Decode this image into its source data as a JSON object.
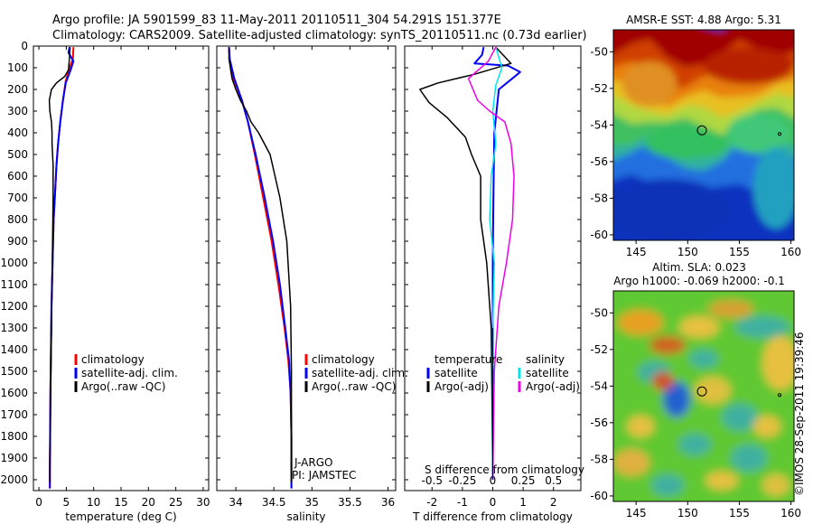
{
  "header": {
    "line1": "Argo profile: JA 5901599_83 11-May-2011 20110511_304 54.291S 151.377E",
    "line2": "Climatology: CARS2009. Satellite-adjusted climatology: synTS_20110511.nc (0.73d earlier)"
  },
  "colors": {
    "climatology": "#ff0000",
    "satellite": "#0000ff",
    "argo": "#000000",
    "sat_cyan": "#00e5ee",
    "argo_magenta": "#ee00ee"
  },
  "chart_data": [
    {
      "type": "line",
      "id": "temperature",
      "xlabel": "temperature (deg C)",
      "ylabel": "",
      "xlim": [
        -1,
        31
      ],
      "ylim": [
        2050,
        0
      ],
      "xticks": [
        0,
        5,
        10,
        15,
        20,
        25,
        30
      ],
      "yticks": [
        0,
        100,
        200,
        300,
        400,
        500,
        600,
        700,
        800,
        900,
        1000,
        1100,
        1200,
        1300,
        1400,
        1500,
        1600,
        1700,
        1800,
        1900,
        2000
      ],
      "legend": [
        "climatology",
        "satellite-adj. clim.",
        "Argo(..raw -QC)"
      ],
      "series": [
        {
          "name": "climatology",
          "color": "#ff0000",
          "x": [
            6.3,
            6.2,
            5.6,
            4.9,
            4.4,
            3.9,
            3.5,
            3.2,
            3.0,
            2.7,
            2.5,
            2.3,
            2.2,
            2.1,
            2.05,
            2.0,
            2.0
          ],
          "y": [
            5,
            60,
            100,
            160,
            250,
            350,
            450,
            550,
            650,
            800,
            1000,
            1200,
            1400,
            1600,
            1800,
            1950,
            2040
          ]
        },
        {
          "name": "satellite-adj. clim.",
          "color": "#0000ff",
          "x": [
            5.6,
            5.4,
            6.3,
            5.8,
            4.9,
            4.4,
            3.9,
            3.5,
            3.2,
            3.0,
            2.7,
            2.5,
            2.3,
            2.2,
            2.1,
            2.05,
            2.0,
            2.0
          ],
          "y": [
            5,
            30,
            70,
            110,
            170,
            250,
            350,
            450,
            550,
            650,
            800,
            1000,
            1200,
            1400,
            1600,
            1800,
            1950,
            2040
          ]
        },
        {
          "name": "Argo(..raw -QC)",
          "color": "#000000",
          "x": [
            5.7,
            5.6,
            5.4,
            4.7,
            3.2,
            2.3,
            1.9,
            2.0,
            2.3,
            2.4,
            2.4,
            2.6,
            2.6,
            2.5,
            2.4,
            2.3,
            2.2,
            2.1,
            2.0,
            2.0
          ],
          "y": [
            5,
            50,
            110,
            140,
            170,
            200,
            250,
            300,
            350,
            400,
            450,
            550,
            700,
            900,
            1100,
            1300,
            1500,
            1700,
            1900,
            2010
          ]
        }
      ]
    },
    {
      "type": "line",
      "id": "salinity",
      "xlabel": "salinity",
      "ylabel": "",
      "xlim": [
        33.75,
        36.1
      ],
      "ylim": [
        2050,
        0
      ],
      "xticks": [
        34,
        34.5,
        35,
        35.5,
        36
      ],
      "legend": [
        "climatology",
        "satellite-adj. clim.",
        "Argo(..raw -QC)"
      ],
      "annotations": [
        "J-ARGO",
        "PI: JAMSTEC"
      ],
      "series": [
        {
          "name": "climatology",
          "color": "#ff0000",
          "x": [
            33.91,
            33.92,
            33.97,
            34.08,
            34.16,
            34.25,
            34.36,
            34.47,
            34.56,
            34.64,
            34.69,
            34.72,
            34.73,
            34.73,
            34.73,
            34.73,
            34.73
          ],
          "y": [
            5,
            60,
            150,
            250,
            350,
            500,
            700,
            900,
            1100,
            1300,
            1450,
            1600,
            1800,
            1950,
            2000,
            2020,
            2040
          ]
        },
        {
          "name": "satellite-adj. clim.",
          "color": "#0000ff",
          "x": [
            33.91,
            33.92,
            33.98,
            34.08,
            34.16,
            34.26,
            34.38,
            34.49,
            34.58,
            34.65,
            34.7,
            34.72,
            34.73,
            34.73,
            34.73,
            34.73
          ],
          "y": [
            5,
            60,
            150,
            250,
            350,
            500,
            700,
            900,
            1100,
            1300,
            1450,
            1600,
            1800,
            1950,
            2000,
            2040
          ]
        },
        {
          "name": "Argo(..raw -QC)",
          "color": "#000000",
          "x": [
            33.91,
            33.91,
            33.95,
            34.0,
            34.06,
            34.14,
            34.2,
            34.3,
            34.45,
            34.58,
            34.67,
            34.72,
            34.73,
            34.73,
            34.73
          ],
          "y": [
            5,
            60,
            150,
            200,
            250,
            300,
            350,
            400,
            500,
            700,
            900,
            1200,
            1500,
            1800,
            2010
          ]
        }
      ]
    },
    {
      "type": "line",
      "id": "difference",
      "xlabel": "T difference from climatology",
      "xlabel_top": "S difference from climatology",
      "xlim": [
        -2.9,
        2.9
      ],
      "ylim": [
        2050,
        0
      ],
      "xticks": [
        -2,
        -1,
        0,
        1,
        2
      ],
      "xticks_s": [
        "-0.5",
        "-0.25",
        "0",
        "0.25",
        "0.5"
      ],
      "legend": [
        "temperature",
        "satellite",
        "Argo(-adj)",
        "salinity",
        "satellite",
        "Argo(-adj)"
      ],
      "series": [
        {
          "name": "temperature satellite",
          "color": "#0000ff",
          "x": [
            -0.3,
            -0.35,
            -0.6,
            0.5,
            0.9,
            0.2,
            0.05,
            0.02,
            0.0,
            0.0,
            0.0
          ],
          "y": [
            5,
            40,
            80,
            90,
            120,
            200,
            400,
            700,
            1000,
            1500,
            2000
          ]
        },
        {
          "name": "temperature Argo(-adj)",
          "color": "#000000",
          "x": [
            0.1,
            0.6,
            -0.6,
            -1.8,
            -2.4,
            -2.1,
            -1.5,
            -0.9,
            -0.7,
            -0.4,
            -0.4,
            -0.2,
            -0.05,
            0.0
          ],
          "y": [
            5,
            80,
            130,
            170,
            200,
            260,
            330,
            420,
            500,
            600,
            800,
            1000,
            1300,
            2000
          ]
        },
        {
          "name": "salinity satellite",
          "color": "#00e5ee",
          "x": [
            0.1,
            0.3,
            0.1,
            0.0,
            0.1,
            -0.05,
            -0.1,
            0.05,
            0.0,
            0.0,
            0.0
          ],
          "y": [
            5,
            100,
            180,
            300,
            450,
            600,
            800,
            1000,
            1300,
            1700,
            2000
          ]
        },
        {
          "name": "salinity Argo(-adj)",
          "color": "#ee00ee",
          "x": [
            0.1,
            -0.15,
            -0.8,
            -0.5,
            -0.1,
            0.4,
            0.6,
            0.7,
            0.65,
            0.45,
            0.2,
            0.05,
            0.0
          ],
          "y": [
            5,
            70,
            150,
            250,
            300,
            350,
            450,
            600,
            800,
            1000,
            1200,
            1500,
            2000
          ]
        }
      ]
    },
    {
      "type": "heatmap",
      "id": "sst_map",
      "title": "AMSR-E SST: 4.88 Argo: 5.31",
      "xticks": [
        145,
        150,
        155,
        160
      ],
      "yticks": [
        -50,
        -52,
        -54,
        -56,
        -58,
        -60
      ],
      "xlim": [
        142.8,
        160.3
      ],
      "ylim": [
        -60.3,
        -48.8
      ],
      "marker": [
        151.377,
        -54.291
      ]
    },
    {
      "type": "heatmap",
      "id": "sla_map",
      "title": "Altim. SLA: 0.023",
      "subtitle": "Argo h1000: -0.069 h2000: -0.1",
      "xticks": [
        145,
        150,
        155,
        160
      ],
      "yticks": [
        -50,
        -52,
        -54,
        -56,
        -58,
        -60
      ],
      "xlim": [
        142.8,
        160.3
      ],
      "ylim": [
        -60.3,
        -48.8
      ],
      "marker": [
        151.377,
        -54.291
      ]
    }
  ],
  "watermark": "©IMOS 28-Sep-2011 19:39:46"
}
